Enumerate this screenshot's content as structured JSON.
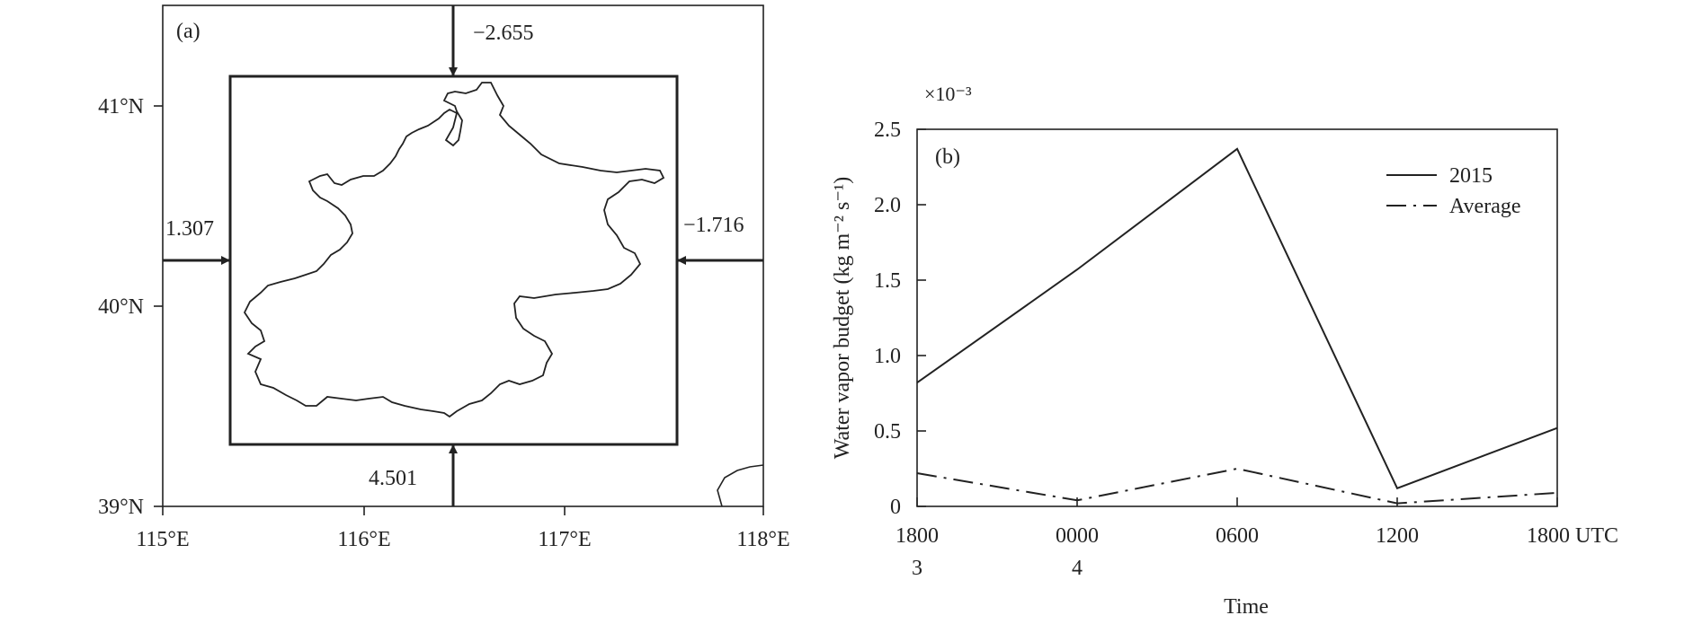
{
  "panel_a": {
    "label": "(a)",
    "x_ticks": [
      "115°E",
      "116°E",
      "117°E",
      "118°E"
    ],
    "y_ticks": [
      "41°N",
      "40°N",
      "39°N"
    ],
    "fluxes": {
      "north": "−2.655",
      "west": "1.307",
      "east": "−1.716",
      "south": "4.501"
    }
  },
  "chart_data": {
    "type": "line",
    "label": "(b)",
    "xlabel": "Time",
    "ylabel": "Water vapor budget (kg m⁻² s⁻¹)",
    "multiplier": "×10⁻³",
    "x_ticks": [
      "1800",
      "0000",
      "0600",
      "1200",
      "1800 UTC"
    ],
    "x_subticks": [
      "3",
      "4",
      "",
      "",
      ""
    ],
    "y_ticks": [
      "0",
      "0.5",
      "1.0",
      "1.5",
      "2.0",
      "2.5"
    ],
    "ylim": [
      0,
      2.5
    ],
    "series": [
      {
        "name": "2015",
        "style": "solid",
        "values": [
          0.82,
          1.57,
          2.37,
          0.12,
          0.52
        ]
      },
      {
        "name": "Average",
        "style": "dashdot",
        "values": [
          0.22,
          0.04,
          0.25,
          0.02,
          0.09
        ]
      }
    ],
    "legend_position": "top-right",
    "grid": false
  }
}
